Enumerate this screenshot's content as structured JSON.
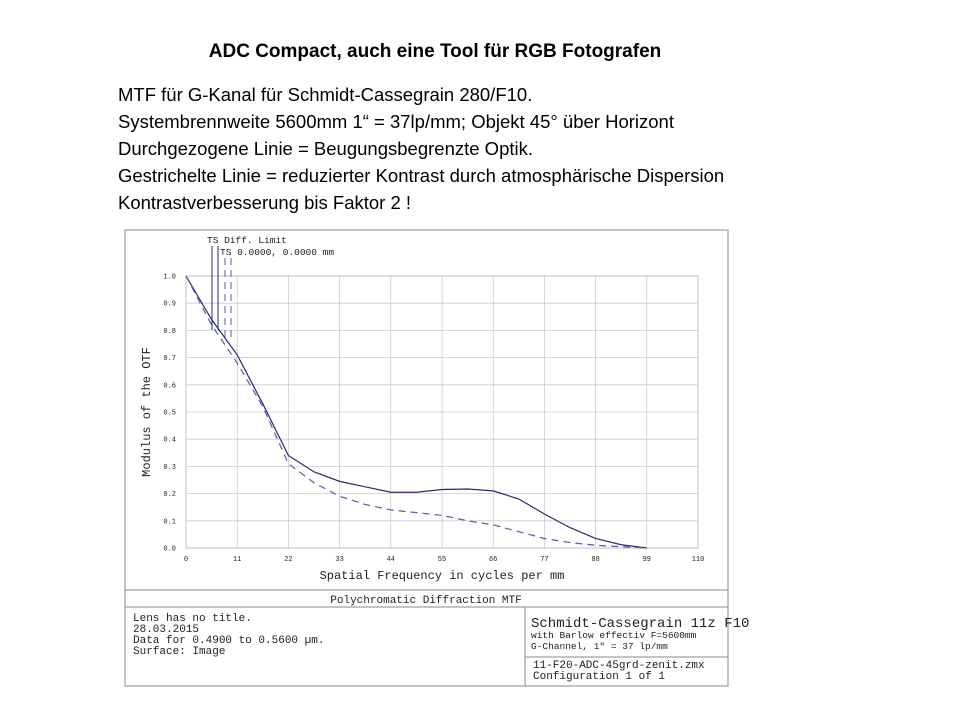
{
  "slide": {
    "title": "ADC Compact, auch eine Tool für RGB Fotografen",
    "lines": [
      "MTF für G-Kanal für Schmidt-Cassegrain 280/F10.",
      "Systembrennweite 5600mm 1“ = 37lp/mm; Objekt 45° über Horizont",
      "Durchgezogene Linie = Beugungsbegrenzte Optik.",
      "Gestrichelte Linie = reduzierter Kontrast durch atmosphärische Dispersion",
      "Kontrastverbesserung bis Faktor 2 !"
    ]
  },
  "chart_data": {
    "type": "line",
    "xlabel": "Spatial Frequency in cycles per mm",
    "ylabel": "Modulus of the OTF",
    "x": [
      0,
      5.5,
      11,
      16.5,
      22,
      27.5,
      33,
      38.5,
      44,
      49.5,
      55,
      60.5,
      66,
      71.5,
      77,
      82.5,
      88,
      93.5,
      99
    ],
    "series": [
      {
        "name": "TS Diff. Limit",
        "color": "#2a2a6a",
        "dashed": false,
        "values": [
          1.0,
          0.84,
          0.71,
          0.53,
          0.34,
          0.28,
          0.245,
          0.225,
          0.205,
          0.205,
          0.215,
          0.217,
          0.21,
          0.18,
          0.125,
          0.075,
          0.035,
          0.012,
          0
        ]
      },
      {
        "name": "TS 0.0000, 0.0000 mm",
        "color": "#5a5aa8",
        "dashed": true,
        "values": [
          1.0,
          0.82,
          0.68,
          0.52,
          0.31,
          0.24,
          0.19,
          0.16,
          0.14,
          0.13,
          0.12,
          0.1,
          0.085,
          0.06,
          0.035,
          0.02,
          0.01,
          0.005,
          0
        ]
      }
    ],
    "xlim": [
      0,
      110
    ],
    "ylim": [
      0,
      1
    ],
    "xticks": [
      0,
      11,
      22,
      33,
      44,
      55,
      66,
      77,
      88,
      99,
      110
    ],
    "yticks": [
      {
        "value": 0,
        "label": "0.0"
      },
      0.1,
      0.2,
      0.3,
      0.4,
      0.5,
      0.6,
      0.7,
      0.8,
      0.9,
      {
        "value": 1,
        "label": "1.0"
      }
    ],
    "grid": true
  },
  "footer": {
    "title": "Polychromatic Diffraction MTF",
    "left": [
      "Lens has no title.",
      "28.03.2015",
      "Data for 0.4900 to 0.5600 µm.",
      "Surface: Image"
    ],
    "right_top": [
      "Schmidt-Cassegrain 11z F10",
      "with Barlow effectiv F=5600mm",
      "G-Channel, 1\" = 37 lp/mm"
    ],
    "right_bottom": [
      "11-F20-ADC-45grd-zenit.zmx",
      "Configuration 1 of 1"
    ]
  }
}
